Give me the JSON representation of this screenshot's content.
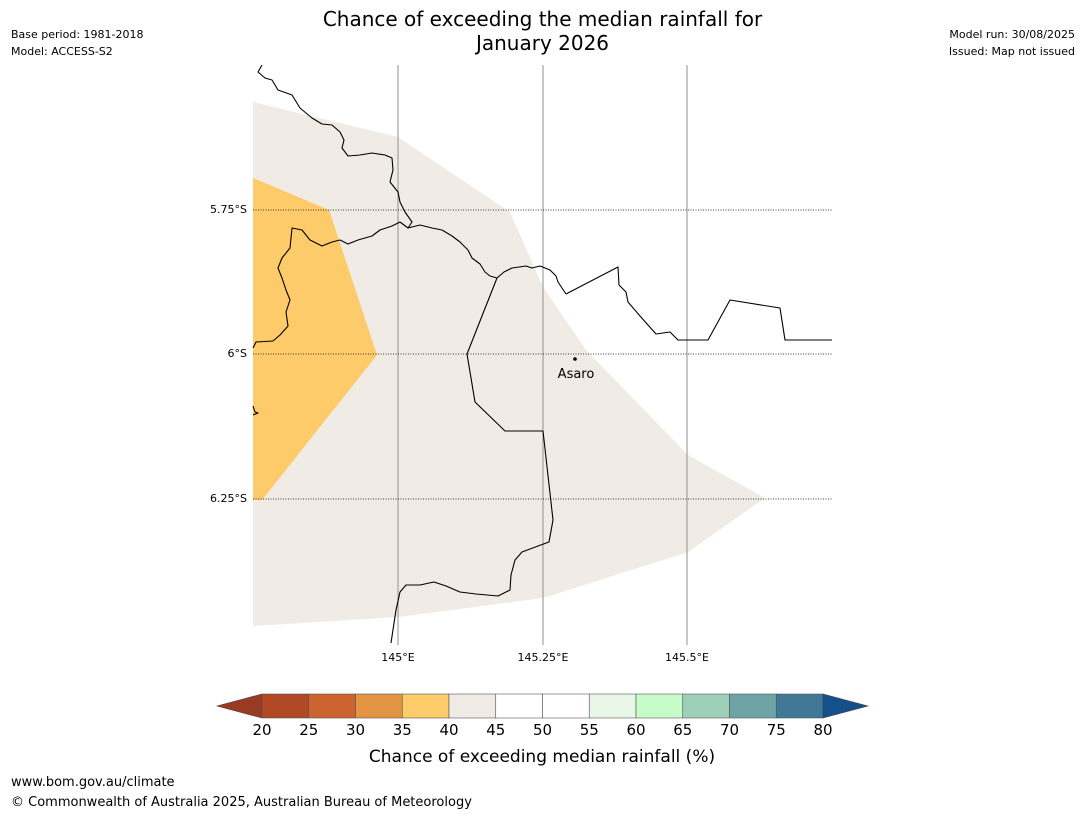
{
  "title": {
    "line1": "Chance of exceeding the median rainfall for",
    "line2": "January 2026"
  },
  "meta_left": {
    "base_period": "Base period: 1981-2018",
    "model": "Model: ACCESS-S2"
  },
  "meta_right": {
    "model_run": "Model run: 30/08/2025",
    "issued": "Issued: Map not issued"
  },
  "map": {
    "lat_labels": [
      "5.75°S",
      "6°S",
      "6.25°S"
    ],
    "lon_labels": [
      "145°E",
      "145.25°E",
      "145.5°E"
    ],
    "place": "Asaro",
    "fill_colors": {
      "35-40": "#fdcb69",
      "40-45": "#f0ebe4"
    }
  },
  "legend": {
    "title": "Chance of exceeding median rainfall (%)",
    "ticks": [
      "20",
      "25",
      "30",
      "35",
      "40",
      "45",
      "50",
      "55",
      "60",
      "65",
      "70",
      "75",
      "80"
    ],
    "colors": {
      "under": "#9a3a22",
      "bins": [
        "#b24925",
        "#cd6430",
        "#e39543",
        "#fdcb69",
        "#f0ebe4",
        "#ffffff",
        "#ffffff",
        "#e9f7e9",
        "#c7fcc8",
        "#9ecfb8",
        "#6ea4a5",
        "#427897"
      ],
      "over": "#145089"
    }
  },
  "footer": {
    "url": "www.bom.gov.au/climate",
    "copyright": "© Commonwealth of Australia 2025, Australian Bureau of Meteorology"
  }
}
